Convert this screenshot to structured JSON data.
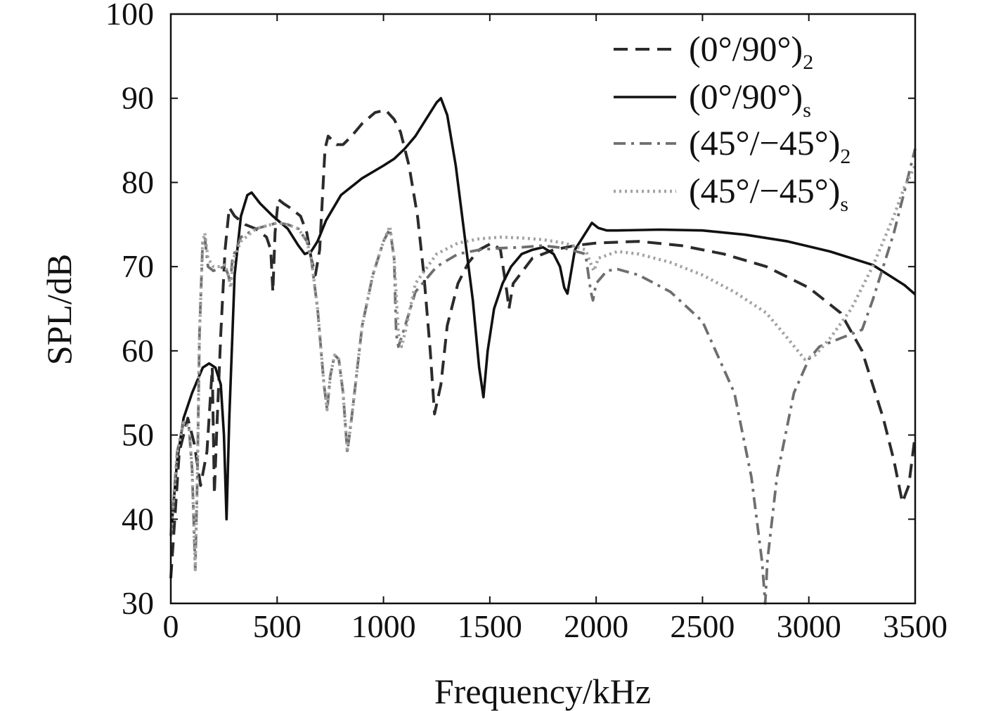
{
  "chart_data": {
    "type": "line",
    "xlabel": "Frequency/kHz",
    "ylabel": "SPL/dB",
    "xlim": [
      0,
      3500
    ],
    "ylim": [
      30,
      100
    ],
    "xticks": [
      0,
      500,
      1000,
      1500,
      2000,
      2500,
      3000,
      3500
    ],
    "yticks": [
      30,
      40,
      50,
      60,
      70,
      80,
      90,
      100
    ],
    "xtick_labels": [
      "0",
      "500",
      "1000",
      "1500",
      "2000",
      "2500",
      "3000",
      "3500"
    ],
    "ytick_labels": [
      "30",
      "40",
      "50",
      "60",
      "70",
      "80",
      "90",
      "100"
    ],
    "grid": false,
    "legend_position": "top-right",
    "series": [
      {
        "name": "(0°/90°)2",
        "label_main": "(0°/90°)",
        "label_sub": "2",
        "color": "#2b2b2b",
        "style": "dashed",
        "points": [
          [
            0,
            33
          ],
          [
            40,
            48
          ],
          [
            80,
            52
          ],
          [
            110,
            49
          ],
          [
            140,
            44
          ],
          [
            170,
            48
          ],
          [
            195,
            58
          ],
          [
            205,
            43
          ],
          [
            215,
            50
          ],
          [
            235,
            62
          ],
          [
            255,
            72
          ],
          [
            275,
            77
          ],
          [
            300,
            76
          ],
          [
            350,
            75
          ],
          [
            400,
            74.5
          ],
          [
            450,
            73.5
          ],
          [
            470,
            72
          ],
          [
            480,
            67
          ],
          [
            490,
            74
          ],
          [
            505,
            78
          ],
          [
            530,
            77.5
          ],
          [
            560,
            77
          ],
          [
            610,
            76
          ],
          [
            640,
            74
          ],
          [
            660,
            71
          ],
          [
            680,
            69
          ],
          [
            700,
            72
          ],
          [
            725,
            84
          ],
          [
            740,
            85.5
          ],
          [
            780,
            84.5
          ],
          [
            810,
            84.5
          ],
          [
            850,
            85.5
          ],
          [
            900,
            87
          ],
          [
            960,
            88.3
          ],
          [
            1010,
            88.6
          ],
          [
            1050,
            87.5
          ],
          [
            1080,
            86
          ],
          [
            1120,
            82
          ],
          [
            1160,
            76
          ],
          [
            1190,
            69
          ],
          [
            1220,
            60
          ],
          [
            1240,
            52.5
          ],
          [
            1270,
            56
          ],
          [
            1300,
            63
          ],
          [
            1350,
            68
          ],
          [
            1400,
            70.5
          ],
          [
            1450,
            72
          ],
          [
            1510,
            72.8
          ],
          [
            1550,
            72
          ],
          [
            1580,
            67
          ],
          [
            1590,
            65
          ],
          [
            1610,
            68
          ],
          [
            1700,
            71
          ],
          [
            1800,
            72
          ],
          [
            1900,
            72.5
          ],
          [
            2000,
            72.8
          ],
          [
            2200,
            73
          ],
          [
            2400,
            72.5
          ],
          [
            2600,
            71.5
          ],
          [
            2800,
            70
          ],
          [
            3000,
            67.5
          ],
          [
            3150,
            64.5
          ],
          [
            3250,
            60
          ],
          [
            3350,
            52
          ],
          [
            3400,
            47
          ],
          [
            3440,
            42
          ],
          [
            3470,
            44
          ],
          [
            3500,
            50
          ]
        ]
      },
      {
        "name": "(0°/90°)s",
        "label_main": "(0°/90°)",
        "label_sub": "s",
        "color": "#111111",
        "style": "solid",
        "points": [
          [
            0,
            38
          ],
          [
            30,
            47
          ],
          [
            60,
            52
          ],
          [
            100,
            55
          ],
          [
            150,
            58
          ],
          [
            180,
            58.5
          ],
          [
            210,
            58
          ],
          [
            235,
            56
          ],
          [
            250,
            50
          ],
          [
            262,
            40
          ],
          [
            275,
            52
          ],
          [
            300,
            69
          ],
          [
            330,
            76
          ],
          [
            360,
            78.5
          ],
          [
            380,
            78.8
          ],
          [
            420,
            77.5
          ],
          [
            480,
            76
          ],
          [
            550,
            74.5
          ],
          [
            600,
            72.5
          ],
          [
            630,
            71.5
          ],
          [
            660,
            71.8
          ],
          [
            690,
            73
          ],
          [
            730,
            75.5
          ],
          [
            800,
            78.5
          ],
          [
            900,
            80.5
          ],
          [
            1000,
            82
          ],
          [
            1050,
            82.8
          ],
          [
            1100,
            84
          ],
          [
            1150,
            85.5
          ],
          [
            1200,
            87.5
          ],
          [
            1250,
            89.5
          ],
          [
            1270,
            90
          ],
          [
            1300,
            88
          ],
          [
            1340,
            82
          ],
          [
            1380,
            74
          ],
          [
            1420,
            66
          ],
          [
            1450,
            58
          ],
          [
            1470,
            54.5
          ],
          [
            1490,
            60
          ],
          [
            1520,
            65
          ],
          [
            1560,
            68
          ],
          [
            1600,
            70
          ],
          [
            1650,
            71.5
          ],
          [
            1700,
            72
          ],
          [
            1750,
            72.3
          ],
          [
            1800,
            71.5
          ],
          [
            1830,
            70
          ],
          [
            1850,
            67.5
          ],
          [
            1865,
            66.8
          ],
          [
            1880,
            69
          ],
          [
            1900,
            72
          ],
          [
            1950,
            74
          ],
          [
            1980,
            75.2
          ],
          [
            2010,
            74.6
          ],
          [
            2050,
            74.3
          ],
          [
            2100,
            74.3
          ],
          [
            2300,
            74.4
          ],
          [
            2500,
            74.3
          ],
          [
            2700,
            73.8
          ],
          [
            2900,
            73
          ],
          [
            3100,
            71.8
          ],
          [
            3300,
            70.2
          ],
          [
            3450,
            67.8
          ],
          [
            3500,
            66.7
          ]
        ]
      },
      {
        "name": "(45°/−45°)2",
        "label_main": "(45°/−45°)",
        "label_sub": "2",
        "color": "#6e6e6e",
        "style": "dashdot",
        "points": [
          [
            0,
            38
          ],
          [
            30,
            48
          ],
          [
            60,
            51.5
          ],
          [
            85,
            51
          ],
          [
            100,
            46
          ],
          [
            115,
            34
          ],
          [
            125,
            45
          ],
          [
            135,
            62
          ],
          [
            150,
            73
          ],
          [
            160,
            73.5
          ],
          [
            175,
            70
          ],
          [
            200,
            69.5
          ],
          [
            230,
            69.8
          ],
          [
            255,
            70
          ],
          [
            270,
            69
          ],
          [
            280,
            68
          ],
          [
            290,
            71
          ],
          [
            330,
            73.5
          ],
          [
            400,
            74.5
          ],
          [
            500,
            75.2
          ],
          [
            550,
            75
          ],
          [
            600,
            74.5
          ],
          [
            640,
            73
          ],
          [
            660,
            71
          ],
          [
            690,
            65
          ],
          [
            720,
            56
          ],
          [
            735,
            53
          ],
          [
            750,
            57
          ],
          [
            770,
            59.5
          ],
          [
            790,
            59
          ],
          [
            810,
            55
          ],
          [
            830,
            48
          ],
          [
            850,
            52
          ],
          [
            900,
            63
          ],
          [
            950,
            69
          ],
          [
            1000,
            73
          ],
          [
            1030,
            74.5
          ],
          [
            1050,
            71
          ],
          [
            1060,
            62
          ],
          [
            1070,
            60.5
          ],
          [
            1090,
            62
          ],
          [
            1150,
            67
          ],
          [
            1250,
            70
          ],
          [
            1350,
            71.5
          ],
          [
            1450,
            72
          ],
          [
            1550,
            72.2
          ],
          [
            1650,
            72.3
          ],
          [
            1750,
            72.5
          ],
          [
            1850,
            72.2
          ],
          [
            1950,
            71.5
          ],
          [
            1975,
            67
          ],
          [
            1985,
            66
          ],
          [
            2000,
            68
          ],
          [
            2050,
            69.5
          ],
          [
            2100,
            69.7
          ],
          [
            2200,
            69
          ],
          [
            2350,
            67
          ],
          [
            2500,
            63.5
          ],
          [
            2650,
            55
          ],
          [
            2730,
            45
          ],
          [
            2780,
            35
          ],
          [
            2795,
            30
          ],
          [
            2805,
            35
          ],
          [
            2850,
            45
          ],
          [
            2930,
            55
          ],
          [
            3000,
            59
          ],
          [
            3050,
            60.5
          ],
          [
            3150,
            61.5
          ],
          [
            3250,
            62.5
          ],
          [
            3300,
            66
          ],
          [
            3350,
            70
          ],
          [
            3400,
            74
          ],
          [
            3450,
            79
          ],
          [
            3500,
            84
          ]
        ]
      },
      {
        "name": "(45°/−45°)s",
        "label_main": "(45°/−45°)",
        "label_sub": "s",
        "color": "#a3a3a3",
        "style": "dotted",
        "points": [
          [
            0,
            38
          ],
          [
            30,
            48
          ],
          [
            60,
            51.5
          ],
          [
            85,
            51
          ],
          [
            100,
            46
          ],
          [
            115,
            34
          ],
          [
            125,
            45
          ],
          [
            135,
            62
          ],
          [
            150,
            73
          ],
          [
            160,
            74
          ],
          [
            175,
            71
          ],
          [
            200,
            70
          ],
          [
            230,
            70
          ],
          [
            255,
            70.2
          ],
          [
            270,
            69
          ],
          [
            282,
            67.5
          ],
          [
            295,
            71
          ],
          [
            330,
            73
          ],
          [
            400,
            74.5
          ],
          [
            500,
            75.2
          ],
          [
            550,
            75
          ],
          [
            600,
            74.5
          ],
          [
            640,
            73
          ],
          [
            660,
            71
          ],
          [
            690,
            65
          ],
          [
            720,
            56
          ],
          [
            735,
            53
          ],
          [
            750,
            57
          ],
          [
            770,
            59.5
          ],
          [
            790,
            59
          ],
          [
            810,
            55
          ],
          [
            830,
            48
          ],
          [
            850,
            52
          ],
          [
            900,
            63
          ],
          [
            950,
            69
          ],
          [
            1000,
            73
          ],
          [
            1030,
            74.8
          ],
          [
            1050,
            71
          ],
          [
            1070,
            62
          ],
          [
            1085,
            60.5
          ],
          [
            1100,
            62
          ],
          [
            1150,
            68
          ],
          [
            1250,
            71.5
          ],
          [
            1350,
            72.8
          ],
          [
            1450,
            73.3
          ],
          [
            1550,
            73.5
          ],
          [
            1650,
            73.4
          ],
          [
            1750,
            73.2
          ],
          [
            1850,
            72.8
          ],
          [
            1950,
            72
          ],
          [
            1980,
            70
          ],
          [
            1990,
            69.5
          ],
          [
            2010,
            71
          ],
          [
            2100,
            71.8
          ],
          [
            2200,
            71.5
          ],
          [
            2350,
            70.5
          ],
          [
            2500,
            69
          ],
          [
            2650,
            67
          ],
          [
            2800,
            64.5
          ],
          [
            2900,
            61.5
          ],
          [
            2980,
            59
          ],
          [
            3030,
            59.5
          ],
          [
            3100,
            61.5
          ],
          [
            3200,
            65
          ],
          [
            3300,
            70
          ],
          [
            3400,
            76
          ],
          [
            3450,
            79.5
          ],
          [
            3500,
            82
          ]
        ]
      }
    ]
  }
}
